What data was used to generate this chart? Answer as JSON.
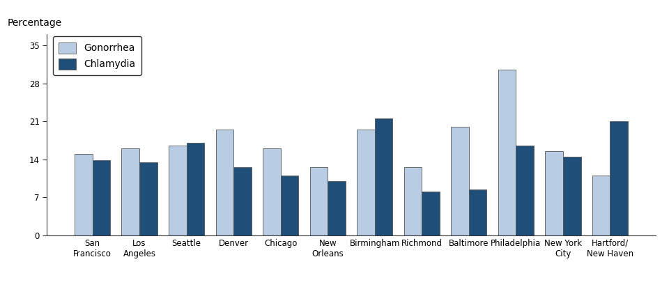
{
  "categories": [
    "San\nFrancisco",
    "Los\nAngeles",
    "Seattle",
    "Denver",
    "Chicago",
    "New\nOrleans",
    "Birmingham",
    "Richmond",
    "Baltimore",
    "Philadelphia",
    "New York\nCity",
    "Hartford/\nNew Haven"
  ],
  "gonorrhea": [
    15.0,
    16.0,
    16.5,
    19.5,
    16.0,
    12.5,
    19.5,
    12.5,
    20.0,
    30.5,
    15.5,
    11.0
  ],
  "chlamydia": [
    13.8,
    13.5,
    17.0,
    12.5,
    11.0,
    10.0,
    21.5,
    8.0,
    8.5,
    16.5,
    14.5,
    21.0
  ],
  "gonorrhea_color": "#b8cce4",
  "chlamydia_color": "#1f4e79",
  "ylabel": "Percentage",
  "yticks": [
    0,
    7,
    14,
    21,
    28,
    35
  ],
  "ylim": [
    0,
    37
  ],
  "bar_width": 0.38,
  "legend_gonorrhea": "Gonorrhea",
  "legend_chlamydia": "Chlamydia",
  "axis_color": "#333333",
  "tick_fontsize": 8.5,
  "label_fontsize": 10,
  "legend_fontsize": 10
}
